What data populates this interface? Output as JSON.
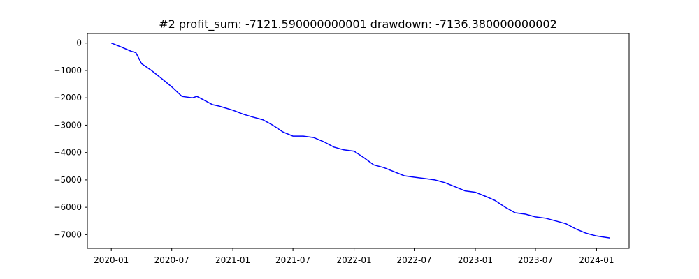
{
  "chart_data": {
    "type": "line",
    "title": "#2   profit_sum: -7121.590000000001 drawdown: -7136.380000000002",
    "xlabel": "",
    "ylabel": "",
    "line_color": "#0000ff",
    "grid": false,
    "legend": "none",
    "xlim": [
      "2019-10-21",
      "2024-04-08"
    ],
    "ylim": [
      -7500,
      350
    ],
    "x_ticks": [
      "2020-01",
      "2020-07",
      "2021-01",
      "2021-07",
      "2022-01",
      "2022-07",
      "2023-01",
      "2023-07",
      "2024-01"
    ],
    "y_ticks": [
      "0",
      "−1000",
      "−2000",
      "−3000",
      "−4000",
      "−5000",
      "−6000",
      "−7000"
    ],
    "series": [
      {
        "x": [
          "2020-01-01",
          "2020-02-01",
          "2020-03-01",
          "2020-03-15",
          "2020-04-01",
          "2020-05-01",
          "2020-06-01",
          "2020-07-01",
          "2020-08-01",
          "2020-09-01",
          "2020-09-15",
          "2020-10-01",
          "2020-11-01",
          "2020-11-20",
          "2021-01-01",
          "2021-02-01",
          "2021-03-01",
          "2021-04-01",
          "2021-05-01",
          "2021-06-01",
          "2021-07-01",
          "2021-08-01",
          "2021-09-01",
          "2021-10-01",
          "2021-11-01",
          "2021-12-01",
          "2022-01-01",
          "2022-02-01",
          "2022-03-01",
          "2022-04-01",
          "2022-05-01",
          "2022-06-01",
          "2022-07-01",
          "2022-08-01",
          "2022-09-01",
          "2022-10-01",
          "2022-11-01",
          "2022-12-01",
          "2023-01-01",
          "2023-02-01",
          "2023-03-01",
          "2023-04-01",
          "2023-05-01",
          "2023-06-01",
          "2023-07-01",
          "2023-08-01",
          "2023-09-01",
          "2023-10-01",
          "2023-11-01",
          "2023-12-01",
          "2024-01-01",
          "2024-02-10"
        ],
        "y": [
          0,
          -150,
          -300,
          -350,
          -750,
          -1000,
          -1300,
          -1600,
          -1950,
          -2000,
          -1950,
          -2050,
          -2250,
          -2300,
          -2450,
          -2600,
          -2700,
          -2800,
          -3000,
          -3250,
          -3400,
          -3400,
          -3450,
          -3600,
          -3800,
          -3900,
          -3950,
          -4200,
          -4450,
          -4550,
          -4700,
          -4850,
          -4900,
          -4950,
          -5000,
          -5100,
          -5250,
          -5400,
          -5450,
          -5600,
          -5750,
          -6000,
          -6200,
          -6250,
          -6350,
          -6400,
          -6500,
          -6600,
          -6800,
          -6950,
          -7050,
          -7120
        ]
      }
    ]
  }
}
